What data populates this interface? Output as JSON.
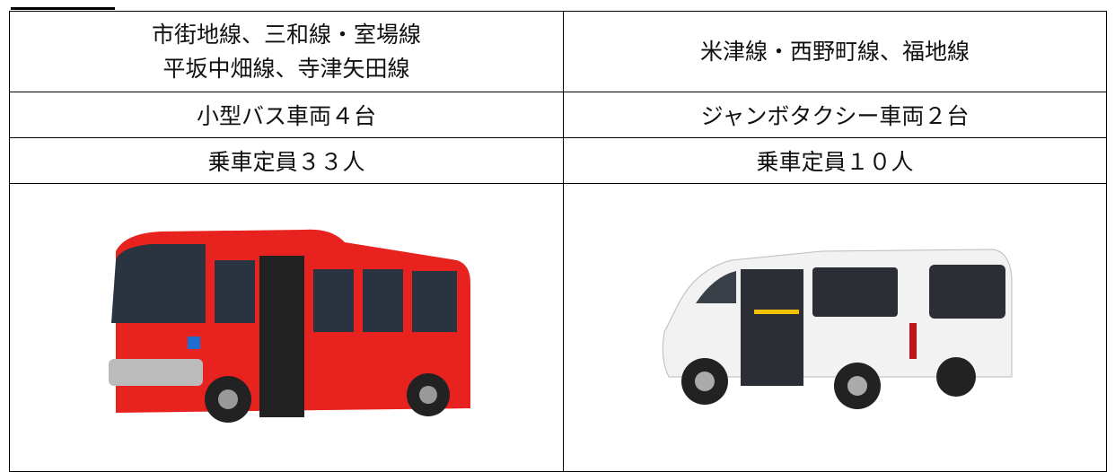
{
  "table": {
    "rows": [
      [
        [
          "市街地線、三和線・室場線",
          "平坂中畑線、寺津矢田線"
        ],
        [
          "米津線・西野町線、福地線"
        ]
      ],
      [
        "小型バス車両４台",
        "ジャンボタクシー車両２台"
      ],
      [
        "乗車定員３３人",
        "乗車定員１０人"
      ]
    ]
  }
}
